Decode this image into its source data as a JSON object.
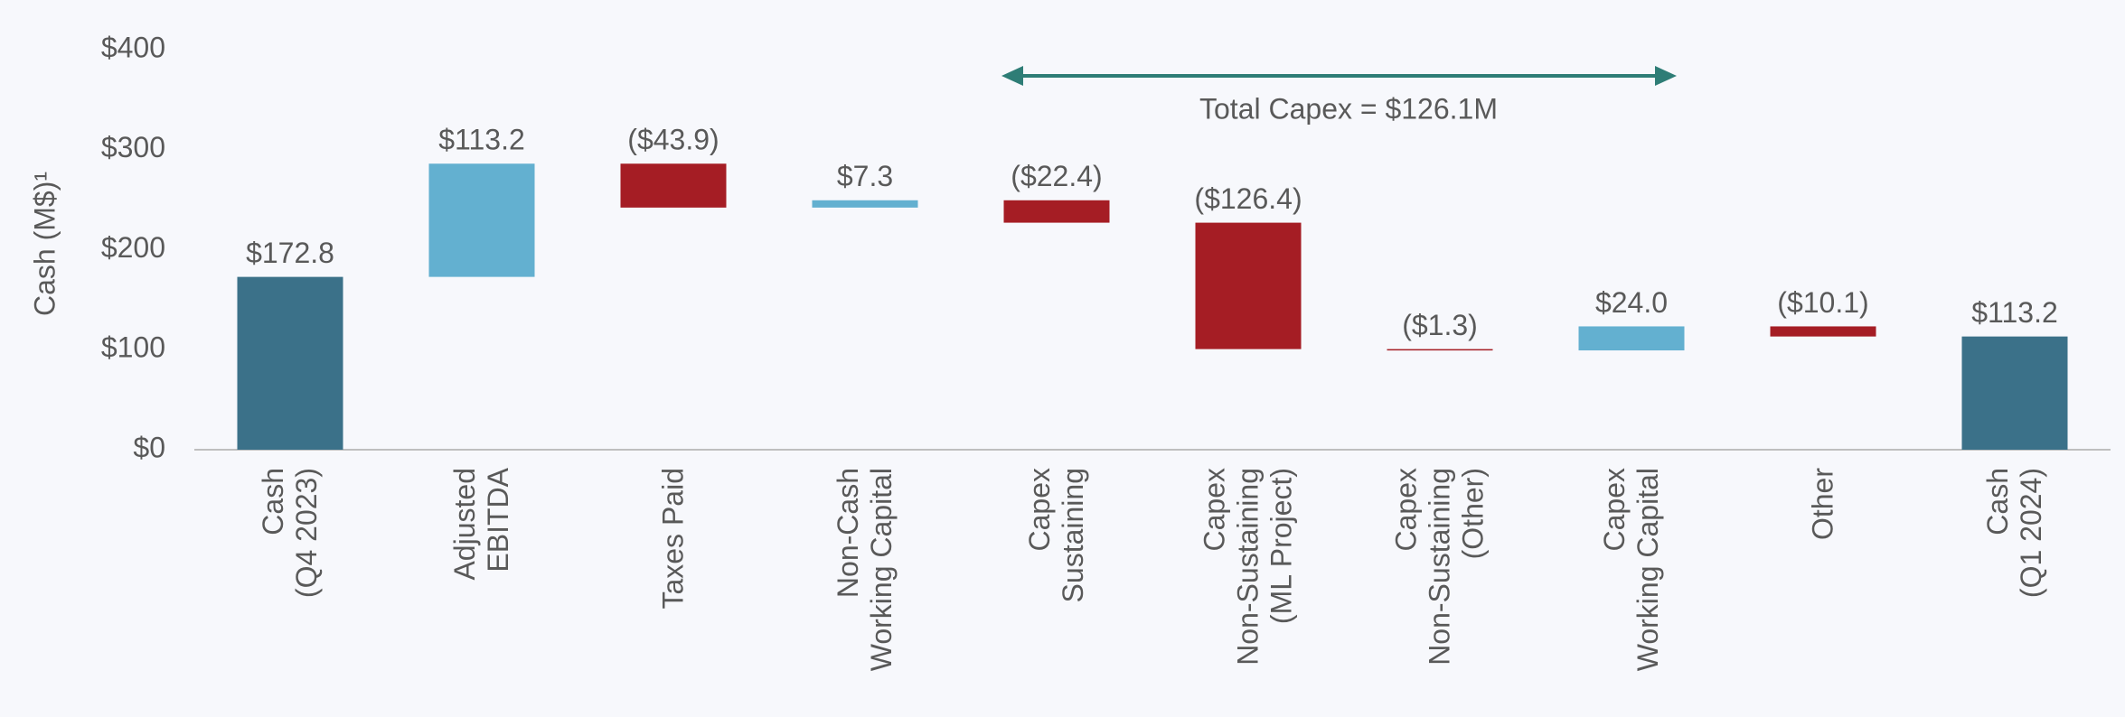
{
  "chart_data": {
    "type": "waterfall",
    "y_label": "Cash (M$)¹",
    "annotation": "Total Capex = $126.1M",
    "categories": [
      "Cash\n(Q4 2023)",
      "Adjusted\nEBITDA",
      "Taxes Paid",
      "Non-Cash\nWorking Capital",
      "Capex\nSustaining",
      "Capex\nNon-Sustaining\n(ML Project)",
      "Capex\nNon-Sustaining\n(Other)",
      "Capex\nWorking Capital",
      "Other",
      "Cash\n(Q1 2024)"
    ],
    "values": [
      172.8,
      113.2,
      -43.9,
      7.3,
      -22.4,
      -126.4,
      -1.3,
      24.0,
      -10.1,
      113.2
    ],
    "value_labels": [
      "$172.8",
      "$113.2",
      "($43.9)",
      "$7.3",
      "($22.4)",
      "($126.4)",
      "($1.3)",
      "$24.0",
      "($10.1)",
      "$113.2"
    ],
    "total_color": "#3b7189",
    "increase_color": "#63b0d0",
    "decrease_color": "#a51d24",
    "ylim": [
      0,
      400
    ],
    "yticks": [
      {
        "value": 0,
        "label": "$0"
      },
      {
        "value": 100,
        "label": "$100"
      },
      {
        "value": 200,
        "label": "$200"
      },
      {
        "value": 300,
        "label": "$300"
      },
      {
        "value": 400,
        "label": "$400"
      }
    ],
    "grid": false
  }
}
